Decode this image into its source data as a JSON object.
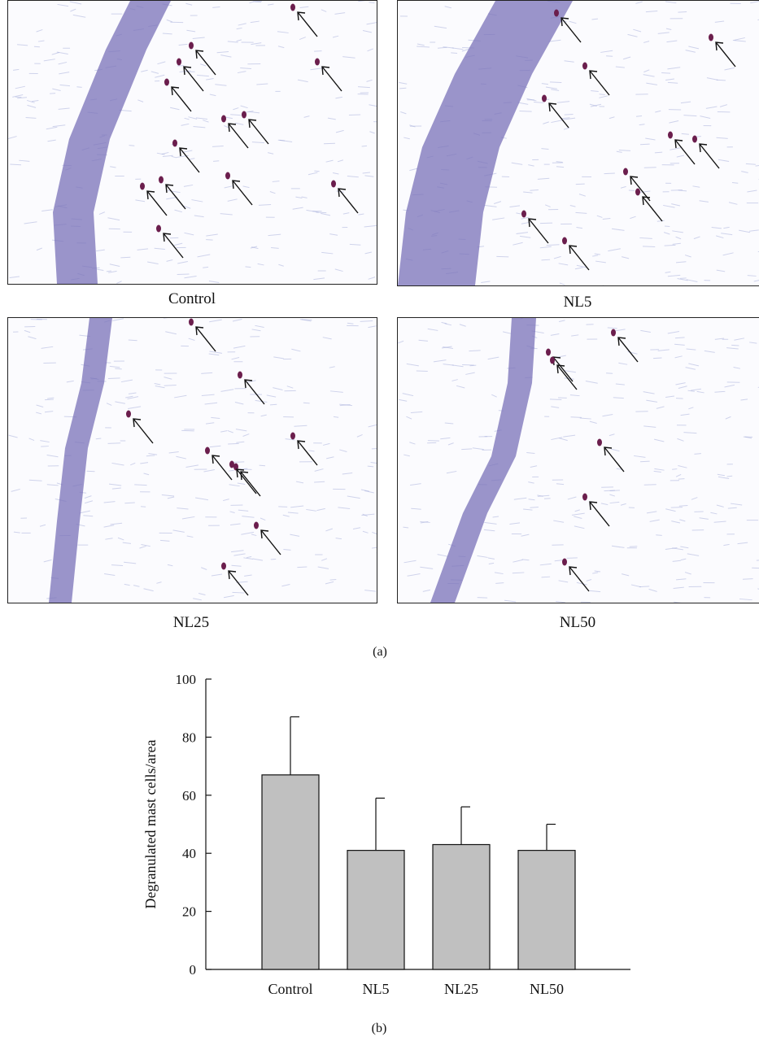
{
  "figure": {
    "panels": [
      {
        "label": "Control",
        "arrows": 13
      },
      {
        "label": "NL5",
        "arrows": 9
      },
      {
        "label": "NL25",
        "arrows": 9
      },
      {
        "label": "NL50",
        "arrows": 6
      }
    ],
    "sub_a": "(a)",
    "sub_b": "(b)"
  },
  "colors": {
    "tissue": "#7a72b8",
    "stain": "#9aa3d6",
    "mast": "#6b1e4d",
    "bar": "#c0c0c0"
  },
  "chart_data": {
    "type": "bar",
    "categories": [
      "Control",
      "NL5",
      "NL25",
      "NL50"
    ],
    "values": [
      67,
      41,
      43,
      41
    ],
    "errors": [
      20,
      18,
      13,
      9
    ],
    "xlabel": "",
    "ylabel": "Degranulated mast cells/area",
    "ylim": [
      0,
      100
    ],
    "yticks": [
      0,
      20,
      40,
      60,
      80,
      100
    ],
    "grid": false
  }
}
